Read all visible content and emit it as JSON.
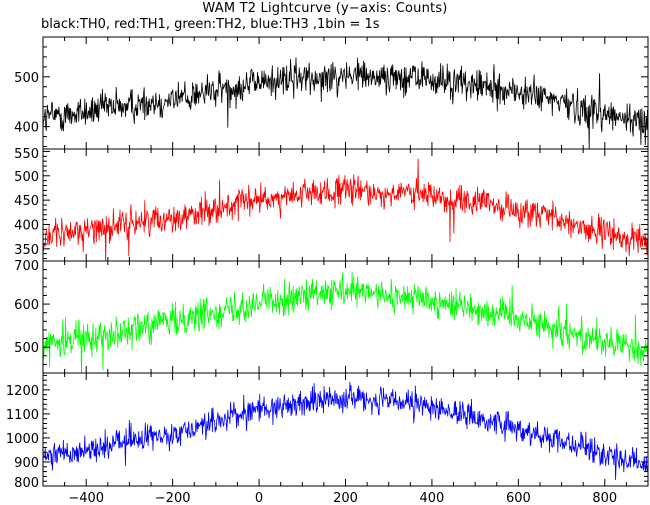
{
  "title": "WAM T2 Lightcurve (y−axis: Counts)",
  "subtitle": "black:TH0, red:TH1, green:TH2, blue:TH3 ,1bin = 1s",
  "chart_data": {
    "type": "line",
    "xlim": [
      -500,
      900
    ],
    "x_ticks": [
      -400,
      -200,
      0,
      200,
      400,
      600,
      800
    ],
    "x_tick_labels": [
      "−400",
      "−200",
      "0",
      "200",
      "400",
      "600",
      "800"
    ],
    "panels": [
      {
        "series": "TH0",
        "color": "#000000",
        "ylim": [
          355,
          580
        ],
        "y_ticks": [
          400,
          500
        ],
        "y_tick_labels": [
          "400",
          "500"
        ],
        "envelope": {
          "x": [
            -500,
            -200,
            0,
            200,
            400,
            600,
            900
          ],
          "y": [
            418,
            455,
            490,
            505,
            495,
            470,
            405
          ]
        },
        "noise_amplitude": 28
      },
      {
        "series": "TH1",
        "color": "#ff0000",
        "ylim": [
          325,
          555
        ],
        "y_ticks": [
          350,
          400,
          450,
          500,
          550
        ],
        "y_tick_labels": [
          "350",
          "400",
          "450",
          "500",
          "550"
        ],
        "envelope": {
          "x": [
            -500,
            -200,
            0,
            200,
            400,
            600,
            900
          ],
          "y": [
            375,
            415,
            450,
            470,
            460,
            430,
            360
          ]
        },
        "noise_amplitude": 25
      },
      {
        "series": "TH2",
        "color": "#00ff00",
        "ylim": [
          440,
          700
        ],
        "y_ticks": [
          500,
          600,
          700
        ],
        "y_tick_labels": [
          "500",
          "600",
          "700"
        ],
        "envelope": {
          "x": [
            -500,
            -200,
            0,
            200,
            400,
            600,
            900
          ],
          "y": [
            505,
            560,
            605,
            628,
            610,
            570,
            485
          ]
        },
        "noise_amplitude": 30
      },
      {
        "series": "TH3",
        "color": "#0000ff",
        "ylim": [
          800,
          1270
        ],
        "y_ticks": [
          800,
          900,
          1000,
          1100,
          1200
        ],
        "y_tick_labels": [
          "800",
          "900",
          "1000",
          "1100",
          "1200"
        ],
        "envelope": {
          "x": [
            -500,
            -200,
            0,
            200,
            400,
            600,
            900
          ],
          "y": [
            920,
            1020,
            1120,
            1170,
            1130,
            1040,
            880
          ]
        },
        "noise_amplitude": 45
      }
    ]
  }
}
